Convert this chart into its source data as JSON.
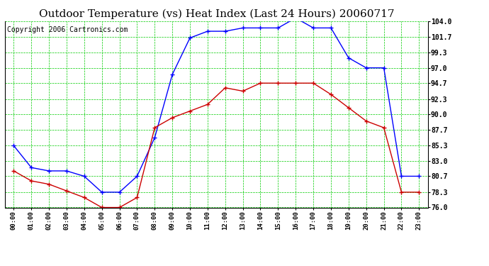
{
  "title": "Outdoor Temperature (vs) Heat Index (Last 24 Hours) 20060717",
  "copyright": "Copyright 2006 Cartronics.com",
  "x_labels": [
    "00:00",
    "01:00",
    "02:00",
    "03:00",
    "04:00",
    "05:00",
    "06:00",
    "07:00",
    "08:00",
    "09:00",
    "10:00",
    "11:00",
    "12:00",
    "13:00",
    "14:00",
    "15:00",
    "16:00",
    "17:00",
    "18:00",
    "19:00",
    "20:00",
    "21:00",
    "22:00",
    "23:00"
  ],
  "blue_line": [
    85.3,
    82.0,
    81.5,
    81.5,
    80.7,
    78.3,
    78.3,
    80.7,
    86.5,
    96.0,
    101.5,
    102.5,
    102.5,
    103.0,
    103.0,
    103.0,
    104.5,
    103.0,
    103.0,
    98.5,
    97.0,
    97.0,
    80.7,
    80.7
  ],
  "red_line": [
    81.5,
    80.0,
    79.5,
    78.5,
    77.5,
    76.0,
    76.0,
    77.5,
    88.0,
    89.5,
    90.5,
    91.5,
    94.0,
    93.5,
    94.7,
    94.7,
    94.7,
    94.7,
    93.0,
    91.0,
    89.0,
    88.0,
    78.3,
    78.3
  ],
  "ylim": [
    76.0,
    104.0
  ],
  "yticks": [
    76.0,
    78.3,
    80.7,
    83.0,
    85.3,
    87.7,
    90.0,
    92.3,
    94.7,
    97.0,
    99.3,
    101.7,
    104.0
  ],
  "blue_color": "#0000FF",
  "red_color": "#CC0000",
  "grid_color": "#00CC00",
  "bg_color": "#FFFFFF",
  "title_fontsize": 11,
  "copyright_fontsize": 7
}
